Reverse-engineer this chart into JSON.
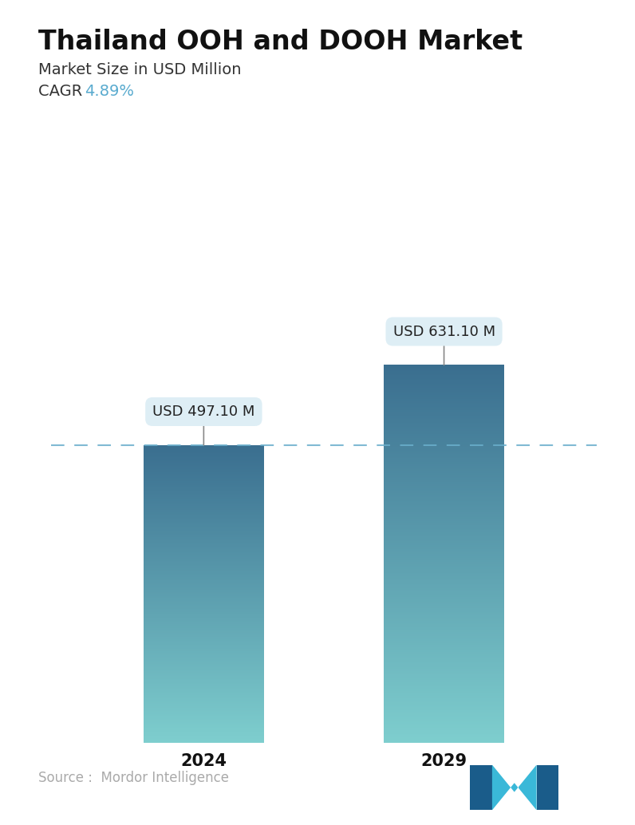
{
  "title": "Thailand OOH and DOOH Market",
  "subtitle": "Market Size in USD Million",
  "cagr_label": "CAGR ",
  "cagr_value": "4.89%",
  "cagr_color": "#5aabcf",
  "years": [
    "2024",
    "2029"
  ],
  "values": [
    497.1,
    631.1
  ],
  "labels": [
    "USD 497.10 M",
    "USD 631.10 M"
  ],
  "bar_top_color": "#3a6e8f",
  "bar_bottom_color": "#7ecece",
  "dashed_line_color": "#6aaecc",
  "source_text": "Source :  Mordor Intelligence",
  "source_color": "#aaaaaa",
  "background_color": "#ffffff",
  "title_fontsize": 24,
  "subtitle_fontsize": 14,
  "cagr_fontsize": 14,
  "label_fontsize": 13,
  "tick_fontsize": 15,
  "source_fontsize": 12,
  "ylim": [
    0,
    800
  ],
  "bar_width": 0.22,
  "x_positions": [
    0.28,
    0.72
  ]
}
